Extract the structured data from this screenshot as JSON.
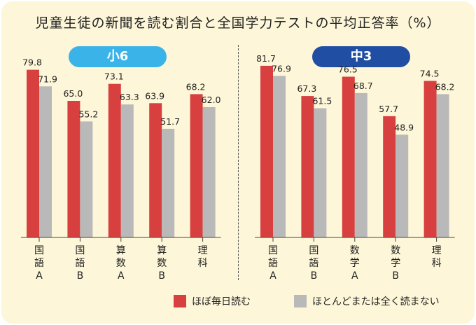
{
  "title": "児童生徒の新聞を読む割合と全国学力テストの平均正答率（%）",
  "colors": {
    "daily": "#d8403f",
    "rarely": "#b9b9b9",
    "sho_pill": "#3ab4e8",
    "chu_pill": "#1f4ea3"
  },
  "legend": {
    "daily": "ほぼ毎日読む",
    "rarely": "ほとんどまたは全く読まない"
  },
  "chart_data": [
    {
      "type": "bar",
      "group_label": "小6",
      "categories": [
        [
          "国",
          "語",
          "A"
        ],
        [
          "国",
          "語",
          "B"
        ],
        [
          "算",
          "数",
          "A"
        ],
        [
          "算",
          "数",
          "B"
        ],
        [
          "理",
          "科"
        ]
      ],
      "series": [
        {
          "name": "ほぼ毎日読む",
          "values": [
            79.8,
            65.0,
            73.1,
            63.9,
            68.2
          ]
        },
        {
          "name": "ほとんどまたは全く読まない",
          "values": [
            71.9,
            55.2,
            63.3,
            51.7,
            62.0
          ]
        }
      ],
      "value_labels": [
        [
          "79.8",
          "65.0",
          "73.1",
          "63.9",
          "68.2"
        ],
        [
          "71.9",
          "55.2",
          "63.3",
          "51.7",
          "62.0"
        ]
      ]
    },
    {
      "type": "bar",
      "group_label": "中3",
      "categories": [
        [
          "国",
          "語",
          "A"
        ],
        [
          "国",
          "語",
          "B"
        ],
        [
          "数",
          "学",
          "A"
        ],
        [
          "数",
          "学",
          "B"
        ],
        [
          "理",
          "科"
        ]
      ],
      "series": [
        {
          "name": "ほぼ毎日読む",
          "values": [
            81.7,
            67.3,
            76.5,
            57.7,
            74.5
          ]
        },
        {
          "name": "ほとんどまたは全く読まない",
          "values": [
            76.9,
            61.5,
            68.7,
            48.9,
            68.2
          ]
        }
      ],
      "value_labels": [
        [
          "81.7",
          "67.3",
          "76.5",
          "57.7",
          "74.5"
        ],
        [
          "76.9",
          "61.5",
          "68.7",
          "48.9",
          "68.2"
        ]
      ]
    }
  ]
}
